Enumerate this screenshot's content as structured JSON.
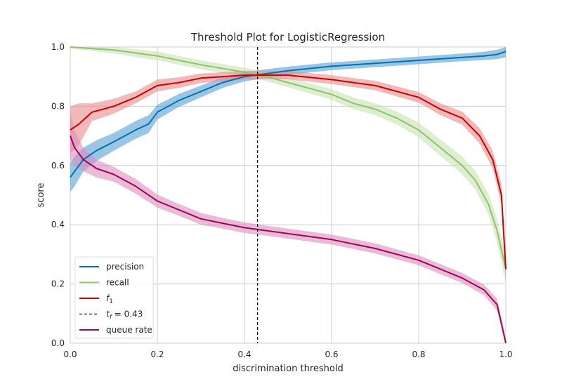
{
  "chart_data": {
    "type": "line",
    "title": "Threshold Plot for LogisticRegression",
    "xlabel": "discrimination threshold",
    "ylabel": "score",
    "xlim": [
      0.0,
      1.0
    ],
    "ylim": [
      0.0,
      1.0
    ],
    "grid": true,
    "xticks": [
      "0.0",
      "0.2",
      "0.4",
      "0.6",
      "0.8",
      "1.0"
    ],
    "yticks": [
      "0.0",
      "0.2",
      "0.4",
      "0.6",
      "0.8",
      "1.0"
    ],
    "legend_position": "lower-left",
    "threshold": {
      "value": 0.43,
      "label_sub": "f",
      "label_rest": " = 0.43",
      "label_base": "t",
      "style": "dashed",
      "color": "#000000"
    },
    "series": [
      {
        "name": "precision",
        "color": "#0072b2",
        "band_color": "#56a0d3",
        "x": [
          0.0,
          0.01,
          0.03,
          0.06,
          0.1,
          0.15,
          0.18,
          0.2,
          0.25,
          0.3,
          0.35,
          0.4,
          0.45,
          0.5,
          0.6,
          0.7,
          0.8,
          0.9,
          0.95,
          0.98,
          1.0
        ],
        "values": [
          0.56,
          0.58,
          0.62,
          0.65,
          0.68,
          0.72,
          0.74,
          0.78,
          0.82,
          0.85,
          0.88,
          0.9,
          0.91,
          0.92,
          0.935,
          0.945,
          0.955,
          0.965,
          0.97,
          0.975,
          0.985
        ],
        "band": [
          0.05,
          0.05,
          0.04,
          0.035,
          0.03,
          0.03,
          0.03,
          0.025,
          0.022,
          0.02,
          0.018,
          0.016,
          0.015,
          0.014,
          0.013,
          0.013,
          0.013,
          0.013,
          0.014,
          0.016,
          0.02
        ]
      },
      {
        "name": "recall",
        "color": "#91c071",
        "band_color": "#c6e2b3",
        "x": [
          0.0,
          0.05,
          0.1,
          0.2,
          0.3,
          0.4,
          0.45,
          0.5,
          0.6,
          0.65,
          0.7,
          0.75,
          0.8,
          0.85,
          0.9,
          0.93,
          0.96,
          0.98,
          1.0
        ],
        "values": [
          1.0,
          0.995,
          0.99,
          0.97,
          0.94,
          0.915,
          0.9,
          0.88,
          0.84,
          0.81,
          0.79,
          0.76,
          0.72,
          0.66,
          0.6,
          0.55,
          0.47,
          0.38,
          0.25
        ],
        "band": [
          0.005,
          0.008,
          0.012,
          0.015,
          0.015,
          0.015,
          0.015,
          0.016,
          0.018,
          0.02,
          0.02,
          0.022,
          0.025,
          0.028,
          0.03,
          0.032,
          0.035,
          0.04,
          0.05
        ]
      },
      {
        "name": "f1",
        "label_base": "f",
        "label_sub": "1",
        "color": "#cc0000",
        "band_color": "#e88a8a",
        "x": [
          0.0,
          0.02,
          0.05,
          0.1,
          0.15,
          0.2,
          0.25,
          0.3,
          0.35,
          0.4,
          0.45,
          0.5,
          0.6,
          0.7,
          0.8,
          0.85,
          0.9,
          0.94,
          0.97,
          0.99,
          1.0
        ],
        "values": [
          0.72,
          0.74,
          0.78,
          0.8,
          0.83,
          0.87,
          0.88,
          0.895,
          0.9,
          0.905,
          0.905,
          0.905,
          0.89,
          0.87,
          0.83,
          0.79,
          0.76,
          0.7,
          0.62,
          0.5,
          0.25
        ],
        "band": [
          0.08,
          0.07,
          0.03,
          0.025,
          0.02,
          0.02,
          0.018,
          0.016,
          0.015,
          0.015,
          0.014,
          0.014,
          0.015,
          0.016,
          0.018,
          0.02,
          0.022,
          0.026,
          0.03,
          0.035,
          0.05
        ]
      },
      {
        "name": "queue rate",
        "color": "#a6005e",
        "band_color": "#d98fbc",
        "x": [
          0.0,
          0.01,
          0.03,
          0.06,
          0.1,
          0.15,
          0.2,
          0.25,
          0.3,
          0.35,
          0.4,
          0.45,
          0.5,
          0.6,
          0.7,
          0.8,
          0.85,
          0.9,
          0.95,
          0.98,
          1.0
        ],
        "values": [
          0.7,
          0.66,
          0.62,
          0.59,
          0.57,
          0.53,
          0.48,
          0.45,
          0.42,
          0.405,
          0.39,
          0.38,
          0.37,
          0.35,
          0.32,
          0.28,
          0.25,
          0.22,
          0.18,
          0.13,
          0.0
        ],
        "band": [
          0.08,
          0.06,
          0.04,
          0.03,
          0.025,
          0.025,
          0.022,
          0.02,
          0.02,
          0.018,
          0.018,
          0.017,
          0.017,
          0.017,
          0.017,
          0.017,
          0.017,
          0.017,
          0.018,
          0.02,
          0.02
        ]
      }
    ]
  }
}
